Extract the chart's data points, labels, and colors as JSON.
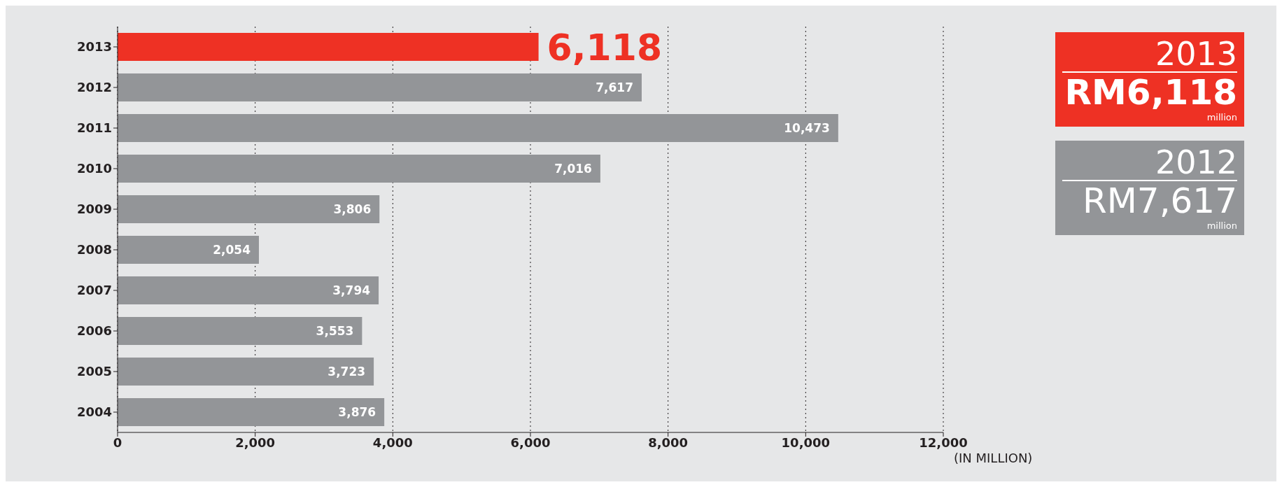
{
  "chart_data": {
    "type": "bar",
    "orientation": "horizontal",
    "categories": [
      "2013",
      "2012",
      "2011",
      "2010",
      "2009",
      "2008",
      "2007",
      "2006",
      "2005",
      "2004"
    ],
    "values": [
      6118,
      7617,
      10473,
      7016,
      3806,
      2054,
      3794,
      3553,
      3723,
      3876
    ],
    "colors": [
      "#ee3124",
      "#939598",
      "#939598",
      "#939598",
      "#939598",
      "#939598",
      "#939598",
      "#939598",
      "#939598",
      "#939598"
    ],
    "xlim": [
      0,
      12000
    ],
    "xticks": [
      0,
      {
        "value": 2000,
        "label": "2,000"
      },
      {
        "value": 4000,
        "label": "4,000"
      },
      {
        "value": 6000,
        "label": "6,000"
      },
      {
        "value": 8000,
        "label": "8,000"
      },
      {
        "value": 10000,
        "label": "10,000"
      },
      {
        "value": 12000,
        "label": "12,000"
      }
    ],
    "value_labels": [
      "6,118",
      "7,617",
      "10,473",
      "7,016",
      "3,806",
      "2,054",
      "3,794",
      "3,553",
      "3,723",
      "3,876"
    ],
    "xlabel": "(IN MILLION)",
    "grid": "x",
    "annotations": [
      "2013",
      "RM6,118",
      "million",
      "2012",
      "RM7,617",
      "million"
    ]
  }
}
